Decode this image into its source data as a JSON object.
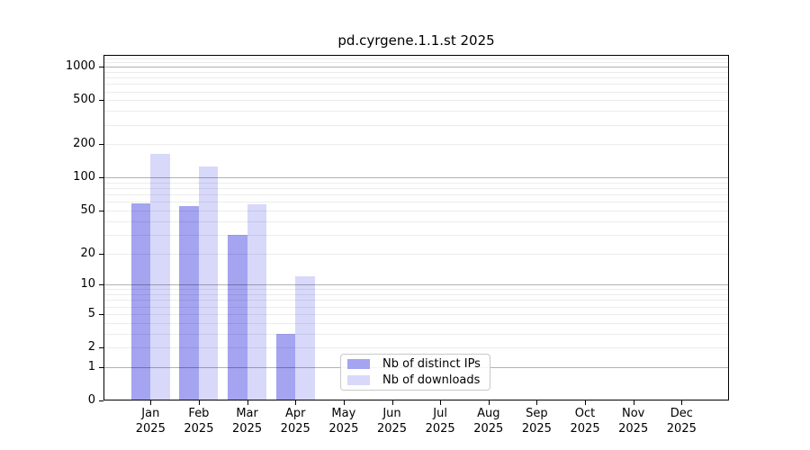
{
  "chart_data": {
    "type": "bar",
    "title": "pd.cyrgene.1.1.st 2025",
    "categories": [
      "Jan 2025",
      "Feb 2025",
      "Mar 2025",
      "Apr 2025",
      "May 2025",
      "Jun 2025",
      "Jul 2025",
      "Aug 2025",
      "Sep 2025",
      "Oct 2025",
      "Nov 2025",
      "Dec 2025"
    ],
    "series": [
      {
        "name": "Nb of distinct IPs",
        "color": "#a4a4f0",
        "values": [
          58,
          55,
          30,
          3,
          0,
          0,
          0,
          0,
          0,
          0,
          0,
          0
        ]
      },
      {
        "name": "Nb of downloads",
        "color": "#d8d8fa",
        "values": [
          164,
          125,
          57,
          12,
          0,
          0,
          0,
          0,
          0,
          0,
          0,
          0
        ]
      }
    ],
    "yscale": "log1p",
    "ylim": [
      0,
      1281
    ],
    "yticks": [
      1000,
      500,
      200,
      100,
      50,
      20,
      10,
      5,
      2,
      1,
      0
    ],
    "minor_gridlines": [
      2,
      3,
      4,
      5,
      6,
      7,
      8,
      9,
      20,
      30,
      40,
      50,
      60,
      70,
      80,
      90,
      200,
      300,
      400,
      500,
      600,
      700,
      800,
      900,
      1100,
      1200
    ],
    "major_gridlines": [
      1,
      10,
      100,
      1000
    ],
    "grid": "horizontal",
    "legend_position": "lower center inside plot"
  }
}
